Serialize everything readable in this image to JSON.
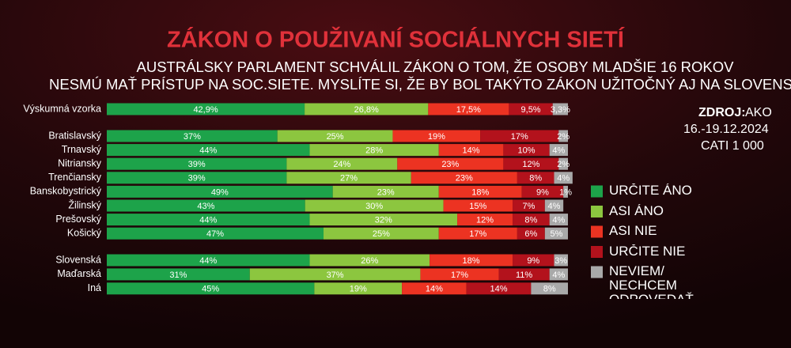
{
  "chart_data": {
    "type": "stacked-bar-horizontal",
    "title": "ZÁKON O POUŽIVANÍ SOCIÁLNYCH SIETÍ",
    "subtitle": [
      "AUSTRÁLSKY PARLAMENT SCHVÁLIL ZÁKON O TOM, ŽE OSOBY MLADŠIE 16 ROKOV",
      "NESMÚ MAŤ PRÍSTUP NA SOC.SIETE. MYSLÍTE SI, ŽE BY BOL TAKÝTO ZÁKON UŽITOČNÝ AJ NA SLOVENSKU?"
    ],
    "source": {
      "label": "ZDROJ:",
      "lines": [
        "AKO",
        "16.-19.12.2024",
        "CATI 1 000"
      ]
    },
    "categories": [
      "Výskumná vzorka",
      "Bratislavský",
      "Trnavský",
      "Nitriansky",
      "Trenčiansky",
      "Banskobystrický",
      "Žilinský",
      "Prešovský",
      "Košický",
      "Slovenská",
      "Maďarská",
      "Iná"
    ],
    "xlim": [
      0,
      100
    ],
    "legend": "right",
    "series": [
      {
        "name": "URČITE ÁNO",
        "color": "#1da34a",
        "values": [
          42.9,
          37,
          44,
          39,
          39,
          49,
          43,
          44,
          47,
          44,
          31,
          45
        ],
        "value_labels": [
          "42,9%",
          "37%",
          "44%",
          "39%",
          "39%",
          "49%",
          "43%",
          "44%",
          "47%",
          "44%",
          "31%",
          "45%"
        ]
      },
      {
        "name": "ASI ÁNO",
        "color": "#8cc63f",
        "values": [
          26.8,
          25,
          28,
          24,
          27,
          23,
          30,
          32,
          25,
          26,
          37,
          19
        ],
        "value_labels": [
          "26,8%",
          "25%",
          "28%",
          "24%",
          "27%",
          "23%",
          "30%",
          "32%",
          "25%",
          "26%",
          "37%",
          "19%"
        ]
      },
      {
        "name": "ASI NIE",
        "color": "#ec3322",
        "values": [
          17.5,
          19,
          14,
          23,
          23,
          18,
          15,
          12,
          17,
          18,
          17,
          14
        ],
        "value_labels": [
          "17,5%",
          "19%",
          "14%",
          "23%",
          "23%",
          "18%",
          "15%",
          "12%",
          "17%",
          "18%",
          "17%",
          "14%"
        ]
      },
      {
        "name": "URČITE NIE",
        "color": "#b3121c",
        "values": [
          9.5,
          17,
          10,
          12,
          8,
          9,
          7,
          8,
          6,
          9,
          11,
          14
        ],
        "value_labels": [
          "9,5%",
          "17%",
          "10%",
          "12%",
          "8%",
          "9%",
          "7%",
          "8%",
          "6%",
          "9%",
          "11%",
          "14%"
        ]
      },
      {
        "name": "NEVIEM/ NECHCEM ODPOVEDAŤ",
        "color": "#a9a9a9",
        "values": [
          3.3,
          2,
          4,
          2,
          4,
          1,
          4,
          4,
          5,
          3,
          4,
          8
        ],
        "value_labels": [
          "3,3%",
          "2%",
          "4%",
          "2%",
          "4%",
          "1%",
          "4%",
          "4%",
          "5%",
          "3%",
          "4%",
          "8%"
        ]
      }
    ]
  }
}
